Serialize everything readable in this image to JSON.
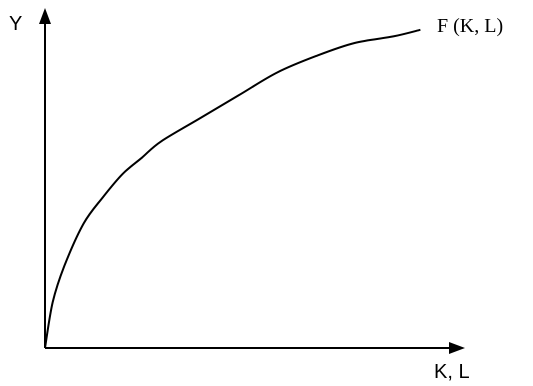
{
  "chart_data": {
    "type": "line",
    "title": "",
    "xlabel": "K, L",
    "ylabel": "Y",
    "grid": false,
    "xlim": [
      0,
      1
    ],
    "ylim": [
      0,
      1
    ],
    "series": [
      {
        "name": "F (K, L)",
        "x": [
          0,
          0.02,
          0.05,
          0.1,
          0.15,
          0.2,
          0.25,
          0.3,
          0.4,
          0.5,
          0.6,
          0.7,
          0.8,
          0.9,
          0.97
        ],
        "y": [
          0,
          0.14,
          0.25,
          0.38,
          0.46,
          0.53,
          0.58,
          0.63,
          0.7,
          0.77,
          0.84,
          0.89,
          0.93,
          0.95,
          0.97
        ]
      }
    ]
  }
}
